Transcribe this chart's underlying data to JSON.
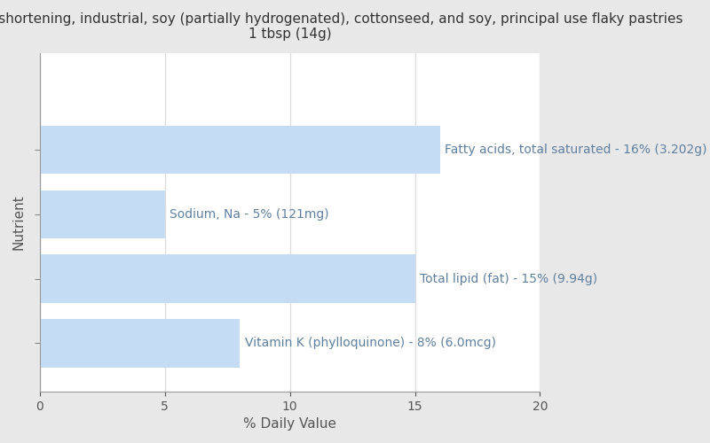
{
  "title": "Margarine-like shortening, industrial, soy (partially hydrogenated), cottonseed, and soy, principal use flaky pastries\n1 tbsp (14g)",
  "xlabel": "% Daily Value",
  "ylabel": "Nutrient",
  "background_color": "#e8e8e8",
  "plot_background_color": "#ffffff",
  "bar_color": "#c5dcf5",
  "bar_label_color": "#6080a0",
  "xlim": [
    0,
    20
  ],
  "nutrients": [
    "Fatty acids, total saturated",
    "Sodium, Na",
    "Total lipid (fat)",
    "Vitamin K (phylloquinone)"
  ],
  "values": [
    16,
    5,
    15,
    8
  ],
  "bar_annotations": [
    "Fatty acids, total saturated - 16% (3.202g)",
    "Sodium, Na - 5% (121mg)",
    "Total lipid (fat) - 15% (9.94g)",
    "Vitamin K (phylloquinone) - 8% (6.0mcg)"
  ],
  "annotation_inside": [
    false,
    true,
    false,
    true
  ],
  "xticks": [
    0,
    5,
    10,
    15,
    20
  ],
  "title_fontsize": 11,
  "axis_label_fontsize": 11,
  "bar_annotation_fontsize": 10,
  "tick_fontsize": 10,
  "grid_color": "#dddddd",
  "bar_height": 0.75,
  "ylim": [
    -0.75,
    4.5
  ],
  "figsize": [
    8.0,
    5.0
  ],
  "dpi": 100
}
